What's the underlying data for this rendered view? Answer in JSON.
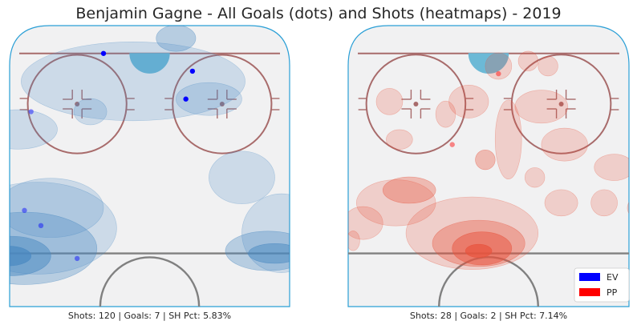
{
  "title": "Benjamin Gagne - All Goals (dots) and Shots (heatmaps) - 2019",
  "colors": {
    "rink_fill": "#f1f1f2",
    "boards": "#2a9fd6",
    "red_line": "#a86b6b",
    "goal_line": "#808080",
    "crease": "#6cb9d6",
    "ev_dot": "#0000ff",
    "pp_dot": "#ff0000",
    "ev_heat": "#4a89c2",
    "pp_heat": "#e8543d"
  },
  "legend": [
    {
      "label": "EV",
      "color": "#0000ff"
    },
    {
      "label": "PP",
      "color": "#ff0000"
    }
  ],
  "chart_data": [
    {
      "type": "scatter",
      "strength": "EV",
      "subtitle": "Shots: 120 | Goals: 7 | SH Pct: 5.83%",
      "shots": 120,
      "goals": 7,
      "sh_pct": 5.83,
      "goal_points": [
        {
          "x": -14,
          "y": 89,
          "alpha": 1.0
        },
        {
          "x": 13,
          "y": 82,
          "alpha": 1.0
        },
        {
          "x": 11,
          "y": 71,
          "alpha": 1.0
        },
        {
          "x": -36,
          "y": 66,
          "alpha": 0.45
        },
        {
          "x": -38,
          "y": 27,
          "alpha": 0.45
        },
        {
          "x": -33,
          "y": 21,
          "alpha": 0.45
        },
        {
          "x": -22,
          "y": 8,
          "alpha": 0.45
        }
      ],
      "heat_blobs": [
        {
          "x": -43,
          "y": 9,
          "rx": 7,
          "ry": 3,
          "level": 4
        },
        {
          "x": -42,
          "y": 9,
          "rx": 12,
          "ry": 6,
          "level": 3
        },
        {
          "x": -38,
          "y": 12,
          "rx": 22,
          "ry": 11,
          "level": 2
        },
        {
          "x": -34,
          "y": 20,
          "rx": 24,
          "ry": 14,
          "level": 1
        },
        {
          "x": -30,
          "y": 28,
          "rx": 16,
          "ry": 9,
          "level": 1
        },
        {
          "x": -40,
          "y": 59,
          "rx": 12,
          "ry": 6,
          "level": 1
        },
        {
          "x": -18,
          "y": 66,
          "rx": 5,
          "ry": 4,
          "level": 1
        },
        {
          "x": -5,
          "y": 78,
          "rx": 34,
          "ry": 12,
          "level": 1
        },
        {
          "x": 18,
          "y": 71,
          "rx": 10,
          "ry": 5,
          "level": 1
        },
        {
          "x": 28,
          "y": 40,
          "rx": 10,
          "ry": 8,
          "level": 1
        },
        {
          "x": 40,
          "y": 18,
          "rx": 12,
          "ry": 12,
          "level": 1
        },
        {
          "x": 36,
          "y": 11,
          "rx": 13,
          "ry": 6,
          "level": 2
        },
        {
          "x": 38,
          "y": 10,
          "rx": 8,
          "ry": 3,
          "level": 3
        },
        {
          "x": 8,
          "y": 95,
          "rx": 6,
          "ry": 4,
          "level": 2
        }
      ]
    },
    {
      "type": "scatter",
      "strength": "PP",
      "subtitle": "Shots: 28 | Goals: 2 | SH Pct: 7.14%",
      "shots": 28,
      "goals": 2,
      "sh_pct": 7.14,
      "goal_points": [
        {
          "x": 3,
          "y": 81,
          "alpha": 0.45
        },
        {
          "x": -11,
          "y": 53,
          "alpha": 0.45
        }
      ],
      "heat_blobs": [
        {
          "x": -3,
          "y": 11,
          "rx": 4,
          "ry": 2,
          "level": 4
        },
        {
          "x": -2,
          "y": 12,
          "rx": 9,
          "ry": 5,
          "level": 3
        },
        {
          "x": -3,
          "y": 14,
          "rx": 14,
          "ry": 7,
          "level": 2
        },
        {
          "x": -5,
          "y": 18,
          "rx": 20,
          "ry": 11,
          "level": 1
        },
        {
          "x": -28,
          "y": 30,
          "rx": 12,
          "ry": 7,
          "level": 1
        },
        {
          "x": -24,
          "y": 35,
          "rx": 8,
          "ry": 4,
          "level": 2
        },
        {
          "x": -38,
          "y": 22,
          "rx": 6,
          "ry": 5,
          "level": 1
        },
        {
          "x": 6,
          "y": 55,
          "rx": 4,
          "ry": 12,
          "level": 1
        },
        {
          "x": -6,
          "y": 70,
          "rx": 6,
          "ry": 5,
          "level": 1
        },
        {
          "x": 16,
          "y": 68,
          "rx": 8,
          "ry": 5,
          "level": 1
        },
        {
          "x": 23,
          "y": 53,
          "rx": 7,
          "ry": 5,
          "level": 1
        },
        {
          "x": 38,
          "y": 44,
          "rx": 6,
          "ry": 4,
          "level": 1
        },
        {
          "x": 3,
          "y": 84,
          "rx": 4,
          "ry": 4,
          "level": 1
        },
        {
          "x": 12,
          "y": 86,
          "rx": 3,
          "ry": 3,
          "level": 1
        },
        {
          "x": 18,
          "y": 84,
          "rx": 3,
          "ry": 3,
          "level": 1
        },
        {
          "x": -30,
          "y": 70,
          "rx": 4,
          "ry": 4,
          "level": 1
        },
        {
          "x": -13,
          "y": 65,
          "rx": 3,
          "ry": 4,
          "level": 1
        },
        {
          "x": 22,
          "y": 30,
          "rx": 5,
          "ry": 4,
          "level": 1
        },
        {
          "x": 35,
          "y": 30,
          "rx": 4,
          "ry": 4,
          "level": 1
        },
        {
          "x": 45,
          "y": 28,
          "rx": 3,
          "ry": 3,
          "level": 1
        },
        {
          "x": -41,
          "y": 15,
          "rx": 2,
          "ry": 3,
          "level": 1
        },
        {
          "x": -27,
          "y": 55,
          "rx": 4,
          "ry": 3,
          "level": 1
        },
        {
          "x": -1,
          "y": 47,
          "rx": 3,
          "ry": 3,
          "level": 2
        },
        {
          "x": 14,
          "y": 40,
          "rx": 3,
          "ry": 3,
          "level": 1
        }
      ]
    }
  ]
}
